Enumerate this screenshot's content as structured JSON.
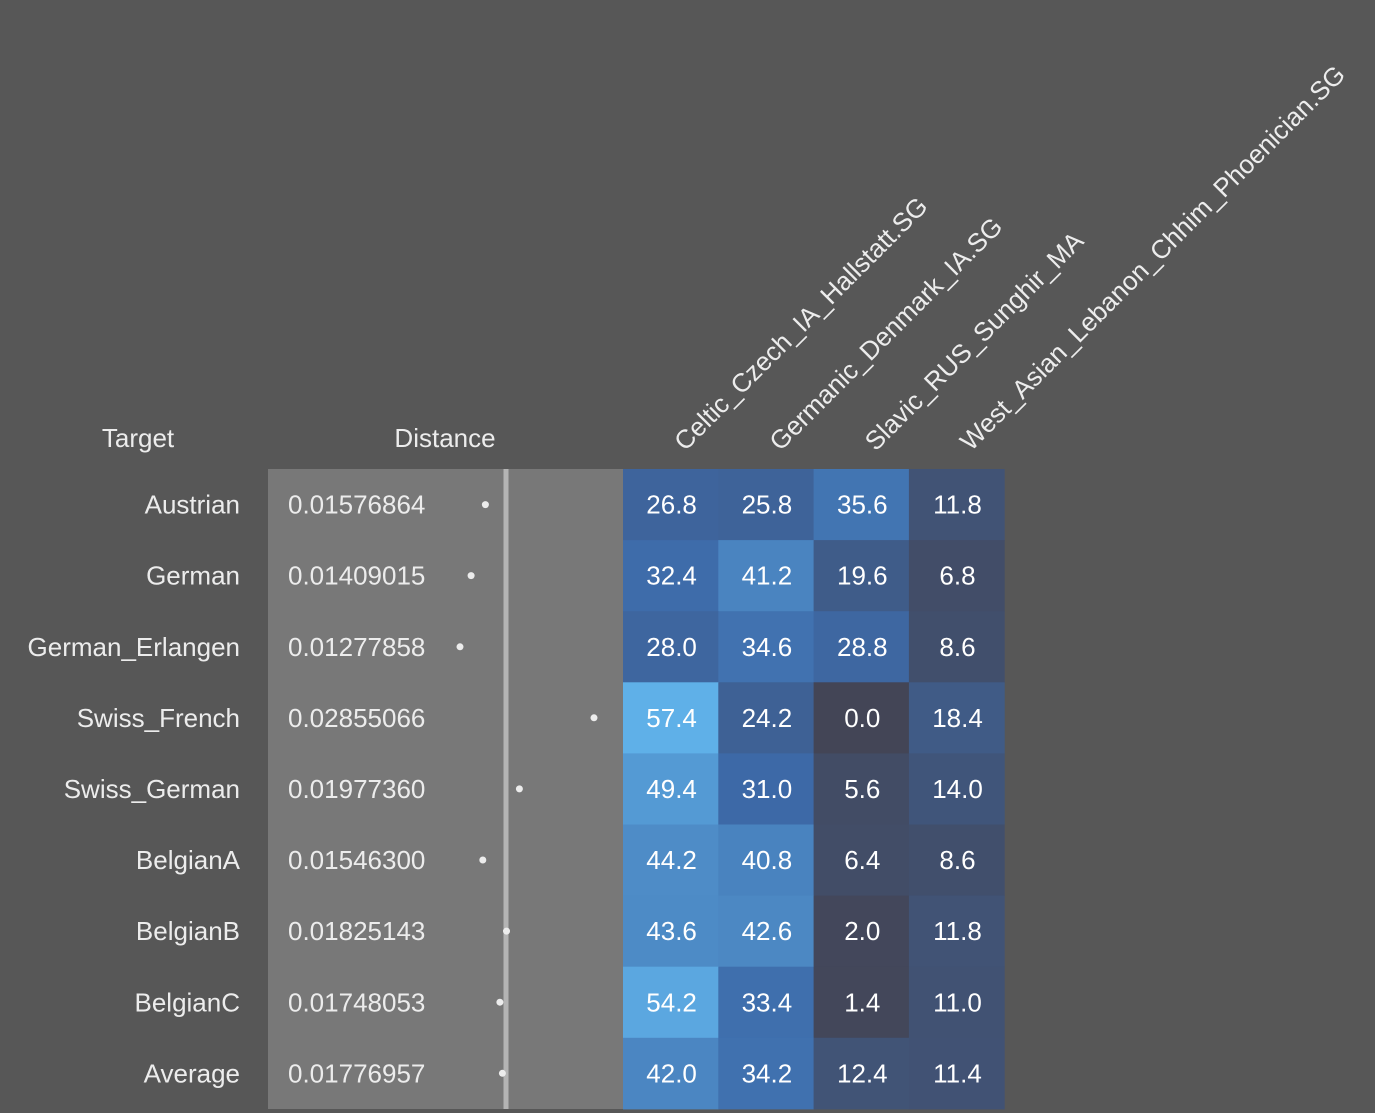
{
  "chart_data": {
    "type": "table",
    "headers": {
      "target": "Target",
      "distance": "Distance"
    },
    "columns": [
      "Celtic_Czech_IA_Hallstatt.SG",
      "Germanic_Denmark_IA.SG",
      "Slavic_RUS_Sunghir_MA",
      "West_Asian_Lebanon_Chhim_Phoenician.SG"
    ],
    "rows": [
      {
        "target": "Austrian",
        "distance": "0.01576864",
        "values": [
          26.8,
          25.8,
          35.6,
          11.8
        ]
      },
      {
        "target": "German",
        "distance": "0.01409015",
        "values": [
          32.4,
          41.2,
          19.6,
          6.8
        ]
      },
      {
        "target": "German_Erlangen",
        "distance": "0.01277858",
        "values": [
          28.0,
          34.6,
          28.8,
          8.6
        ]
      },
      {
        "target": "Swiss_French",
        "distance": "0.02855066",
        "values": [
          57.4,
          24.2,
          0.0,
          18.4
        ]
      },
      {
        "target": "Swiss_German",
        "distance": "0.01977360",
        "values": [
          49.4,
          31.0,
          5.6,
          14.0
        ]
      },
      {
        "target": "BelgianA",
        "distance": "0.01546300",
        "values": [
          44.2,
          40.8,
          6.4,
          8.6
        ]
      },
      {
        "target": "BelgianB",
        "distance": "0.01825143",
        "values": [
          43.6,
          42.6,
          2.0,
          11.8
        ]
      },
      {
        "target": "BelgianC",
        "distance": "0.01748053",
        "values": [
          54.2,
          33.4,
          1.4,
          11.0
        ]
      },
      {
        "target": "Average",
        "distance": "0.01776957",
        "values": [
          42.0,
          34.2,
          12.4,
          11.4
        ]
      }
    ],
    "colors": {
      "background": "#575757",
      "distance_panel": "#787878",
      "marker_line": "#b4b4b4",
      "dot": "#ececec",
      "heat_low": "#434556",
      "heat_high": "#5fb0e8"
    }
  }
}
